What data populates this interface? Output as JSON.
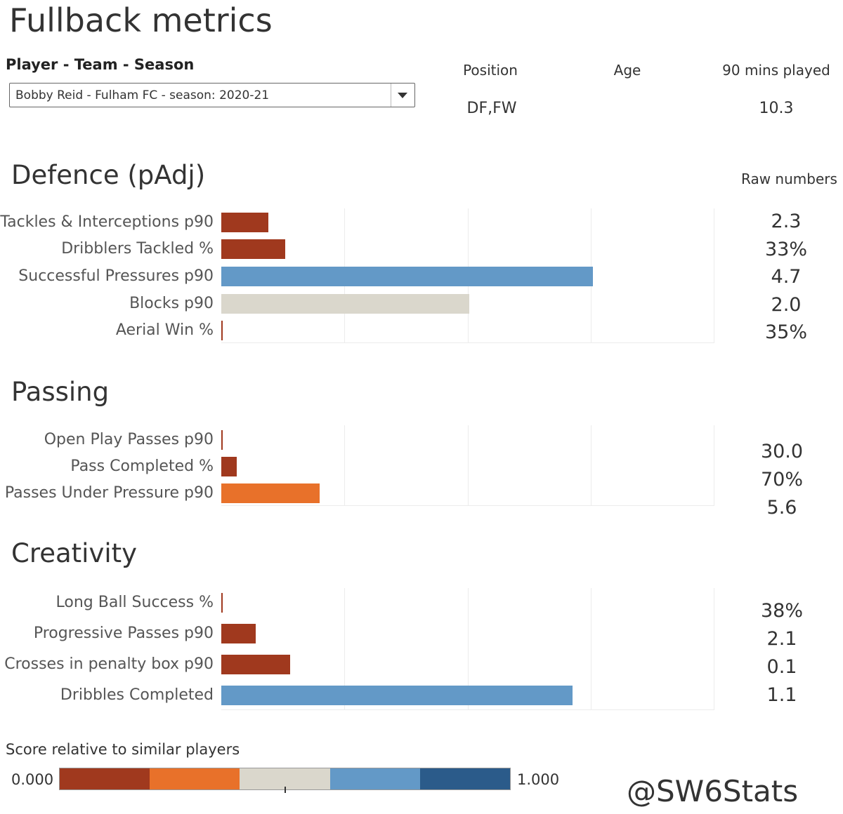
{
  "page": {
    "title": "Fullback metrics",
    "selector_label": "Player - Team - Season",
    "selector_value": "Bobby Reid - Fulham FC - season: 2020-21",
    "watermark": "@SW6Stats"
  },
  "info": {
    "position_label": "Position",
    "position_value": "DF,FW",
    "age_label": "Age",
    "age_value": "",
    "mins_label": "90 mins played",
    "mins_value": "10.3"
  },
  "raw_numbers_label": "Raw numbers",
  "colors": {
    "score_0": "#a0391e",
    "score_1": "#e8712a",
    "score_2": "#dad7cc",
    "score_3": "#6399c7",
    "score_4": "#2b5b8a",
    "gridline": "#ececec"
  },
  "chart_data": [
    {
      "type": "bar",
      "orientation": "horizontal",
      "title": "Defence (pAdj)",
      "xlim": [
        0,
        1
      ],
      "grid": true,
      "categories": [
        "Tackles & Interceptions p90",
        "Dribblers Tackled %",
        "Successful Pressures p90",
        "Blocks p90",
        "Aerial Win %"
      ],
      "values": [
        0.095,
        0.13,
        0.755,
        0.503,
        0.003
      ],
      "raw": [
        "2.3",
        "33%",
        "4.7",
        "2.0",
        "35%"
      ]
    },
    {
      "type": "bar",
      "orientation": "horizontal",
      "title": "Passing",
      "xlim": [
        0,
        1
      ],
      "grid": true,
      "categories": [
        "Open Play Passes p90",
        "Pass Completed %",
        "Passes Under Pressure p90"
      ],
      "values": [
        0.003,
        0.032,
        0.2
      ],
      "raw": [
        "30.0",
        "70%",
        "5.6"
      ]
    },
    {
      "type": "bar",
      "orientation": "horizontal",
      "title": "Creativity",
      "xlim": [
        0,
        1
      ],
      "grid": true,
      "categories": [
        "Long Ball Success %",
        "Progressive Passes p90",
        "Crosses in penalty box p90",
        "Dribbles Completed"
      ],
      "values": [
        0.003,
        0.07,
        0.14,
        0.713
      ],
      "raw": [
        "38%",
        "2.1",
        "0.1",
        "1.1"
      ]
    }
  ],
  "legend": {
    "title": "Score relative to similar players",
    "min_label": "0.000",
    "max_label": "1.000"
  }
}
